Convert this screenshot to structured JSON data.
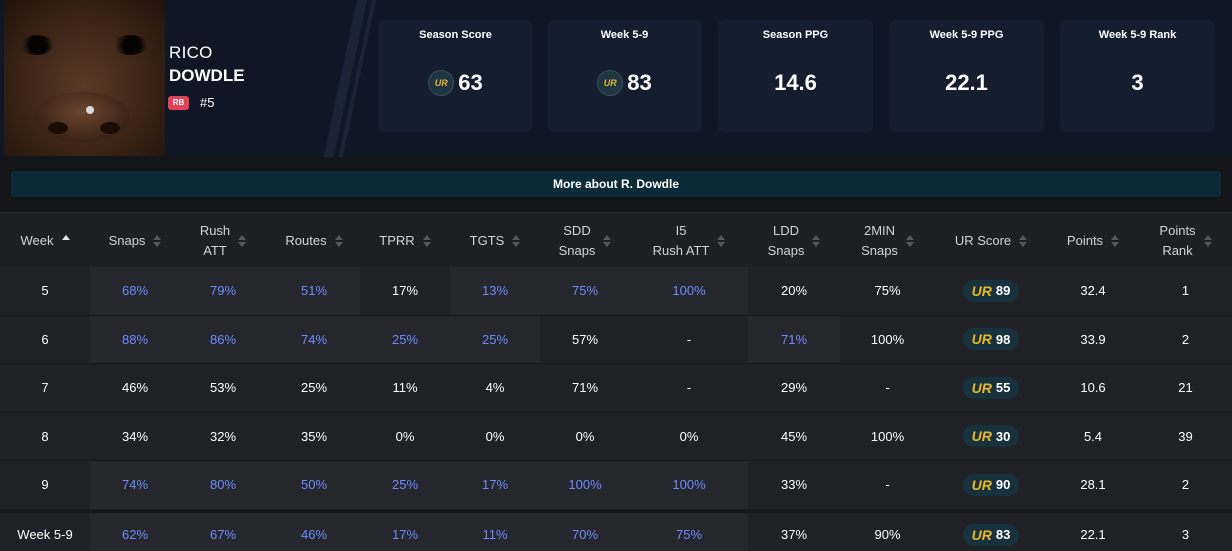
{
  "player": {
    "first_name": "RICO",
    "last_name": "DOWDLE",
    "position": "RB",
    "jersey": "#5"
  },
  "stat_cards": [
    {
      "label": "Season Score",
      "value": "63",
      "has_ur_logo": true
    },
    {
      "label": "Week 5-9",
      "value": "83",
      "has_ur_logo": true
    },
    {
      "label": "Season PPG",
      "value": "14.6",
      "has_ur_logo": false
    },
    {
      "label": "Week 5-9 PPG",
      "value": "22.1",
      "has_ur_logo": false
    },
    {
      "label": "Week 5-9 Rank",
      "value": "3",
      "has_ur_logo": false
    }
  ],
  "ur_logo_text": "UR",
  "more_about": "More about R. Dowdle",
  "table": {
    "headers": [
      "Week",
      "Snaps",
      "Rush\nATT",
      "Routes",
      "TPRR",
      "TGTS",
      "SDD\nSnaps",
      "I5\nRush ATT",
      "LDD\nSnaps",
      "2MIN\nSnaps",
      "UR Score",
      "Points",
      "Points\nRank"
    ],
    "rows": [
      {
        "cells": [
          "5",
          "68%",
          "79%",
          "51%",
          "17%",
          "13%",
          "75%",
          "100%",
          "20%",
          "75%",
          "89",
          "32.4",
          "1"
        ],
        "highlight": [
          false,
          true,
          true,
          true,
          false,
          true,
          true,
          true,
          false,
          false,
          false,
          false,
          false
        ]
      },
      {
        "cells": [
          "6",
          "88%",
          "86%",
          "74%",
          "25%",
          "25%",
          "57%",
          "-",
          "71%",
          "100%",
          "98",
          "33.9",
          "2"
        ],
        "highlight": [
          false,
          true,
          true,
          true,
          true,
          true,
          false,
          false,
          true,
          false,
          false,
          false,
          false
        ]
      },
      {
        "cells": [
          "7",
          "46%",
          "53%",
          "25%",
          "11%",
          "4%",
          "71%",
          "-",
          "29%",
          "-",
          "55",
          "10.6",
          "21"
        ],
        "highlight": [
          false,
          false,
          false,
          false,
          false,
          false,
          false,
          false,
          false,
          false,
          false,
          false,
          false
        ]
      },
      {
        "cells": [
          "8",
          "34%",
          "32%",
          "35%",
          "0%",
          "0%",
          "0%",
          "0%",
          "45%",
          "100%",
          "30",
          "5.4",
          "39"
        ],
        "highlight": [
          false,
          false,
          false,
          false,
          false,
          false,
          false,
          false,
          false,
          false,
          false,
          false,
          false
        ]
      },
      {
        "cells": [
          "9",
          "74%",
          "80%",
          "50%",
          "25%",
          "17%",
          "100%",
          "100%",
          "33%",
          "-",
          "90",
          "28.1",
          "2"
        ],
        "highlight": [
          false,
          true,
          true,
          true,
          true,
          true,
          true,
          true,
          false,
          false,
          false,
          false,
          false
        ]
      },
      {
        "cells": [
          "Week 5-9",
          "62%",
          "67%",
          "46%",
          "17%",
          "11%",
          "70%",
          "75%",
          "37%",
          "90%",
          "83",
          "22.1",
          "3"
        ],
        "highlight": [
          false,
          true,
          true,
          true,
          true,
          true,
          true,
          true,
          false,
          false,
          false,
          false,
          false
        ]
      }
    ]
  },
  "colors": {
    "highlight_text": "#6e8cff",
    "ur_gold": "#e8b826",
    "badge_red": "#e0425a"
  }
}
